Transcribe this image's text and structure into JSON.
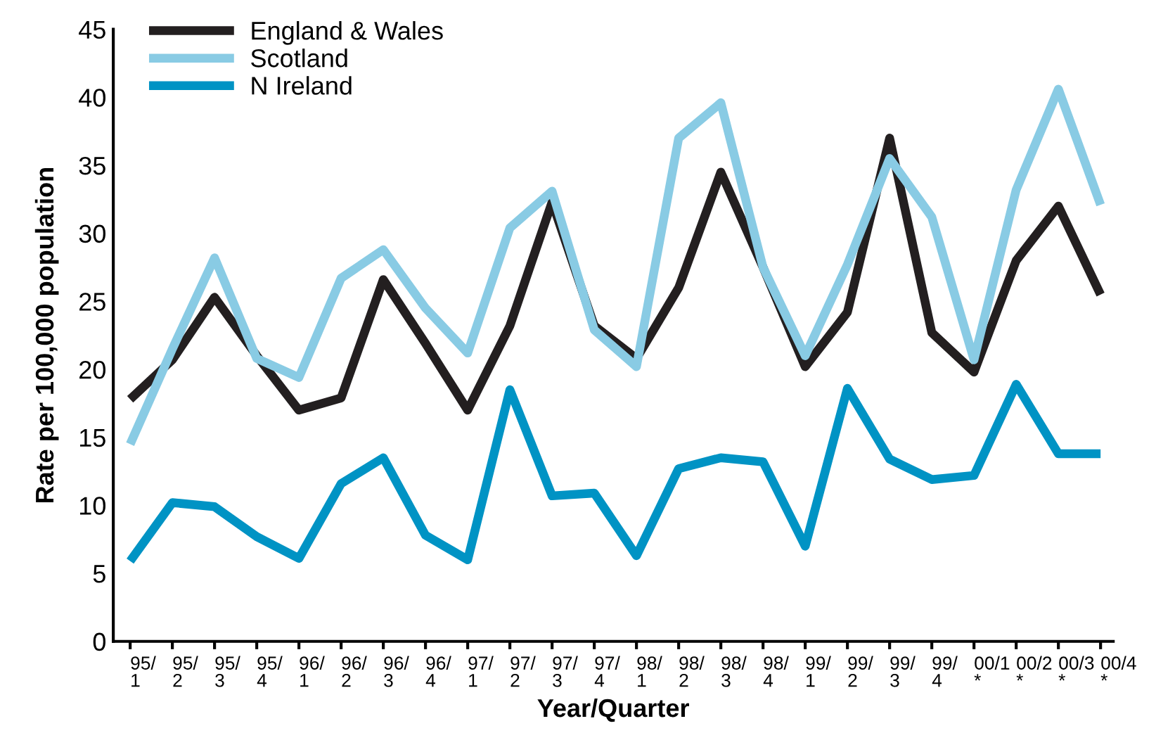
{
  "chart_data": {
    "type": "line",
    "xlabel": "Year/Quarter",
    "ylabel": "Rate per 100,000 population",
    "categories": [
      "95/\n1",
      "95/\n2",
      "95/\n3",
      "95/\n4",
      "96/\n1",
      "96/\n2",
      "96/\n3",
      "96/\n4",
      "97/\n1",
      "97/\n2",
      "97/\n3",
      "97/\n4",
      "98/\n1",
      "98/\n2",
      "98/\n3",
      "98/\n4",
      "99/\n1",
      "99/\n2",
      "99/\n3",
      "99/\n4",
      "00/1\n*",
      "00/2\n*",
      "00/3\n*",
      "00/4\n*"
    ],
    "series": [
      {
        "name": "England & Wales",
        "color": "#231f20",
        "values": [
          17.8,
          20.7,
          25.3,
          21,
          17,
          17.9,
          26.6,
          21.9,
          17,
          23.2,
          32.3,
          23.2,
          20.8,
          26,
          34.5,
          27.5,
          20.2,
          24.2,
          37,
          22.7,
          19.8,
          28,
          32,
          25.5
        ]
      },
      {
        "name": "Scotland",
        "color": "#89cbe4",
        "values": [
          14.5,
          21.5,
          28.2,
          20.8,
          19.4,
          26.7,
          28.8,
          24.5,
          21.2,
          30.4,
          33.1,
          22.9,
          20.2,
          37,
          39.6,
          27.5,
          21,
          27.7,
          35.5,
          31.2,
          20.7,
          33.2,
          40.6,
          32.1
        ]
      },
      {
        "name": "N Ireland",
        "color": "#0093c4",
        "values": [
          5.9,
          10.2,
          9.9,
          7.7,
          6.1,
          11.6,
          13.5,
          7.8,
          6,
          18.5,
          10.7,
          10.9,
          6.3,
          12.7,
          13.5,
          13.2,
          7,
          18.6,
          13.4,
          11.9,
          12.2,
          18.9,
          13.8,
          13.8
        ]
      }
    ],
    "ylim": [
      0,
      45
    ],
    "yticks": [
      0,
      5,
      10,
      15,
      20,
      25,
      30,
      35,
      40,
      45
    ],
    "grid": false,
    "legend": "top left",
    "marker": "none",
    "line_style": "solid"
  }
}
